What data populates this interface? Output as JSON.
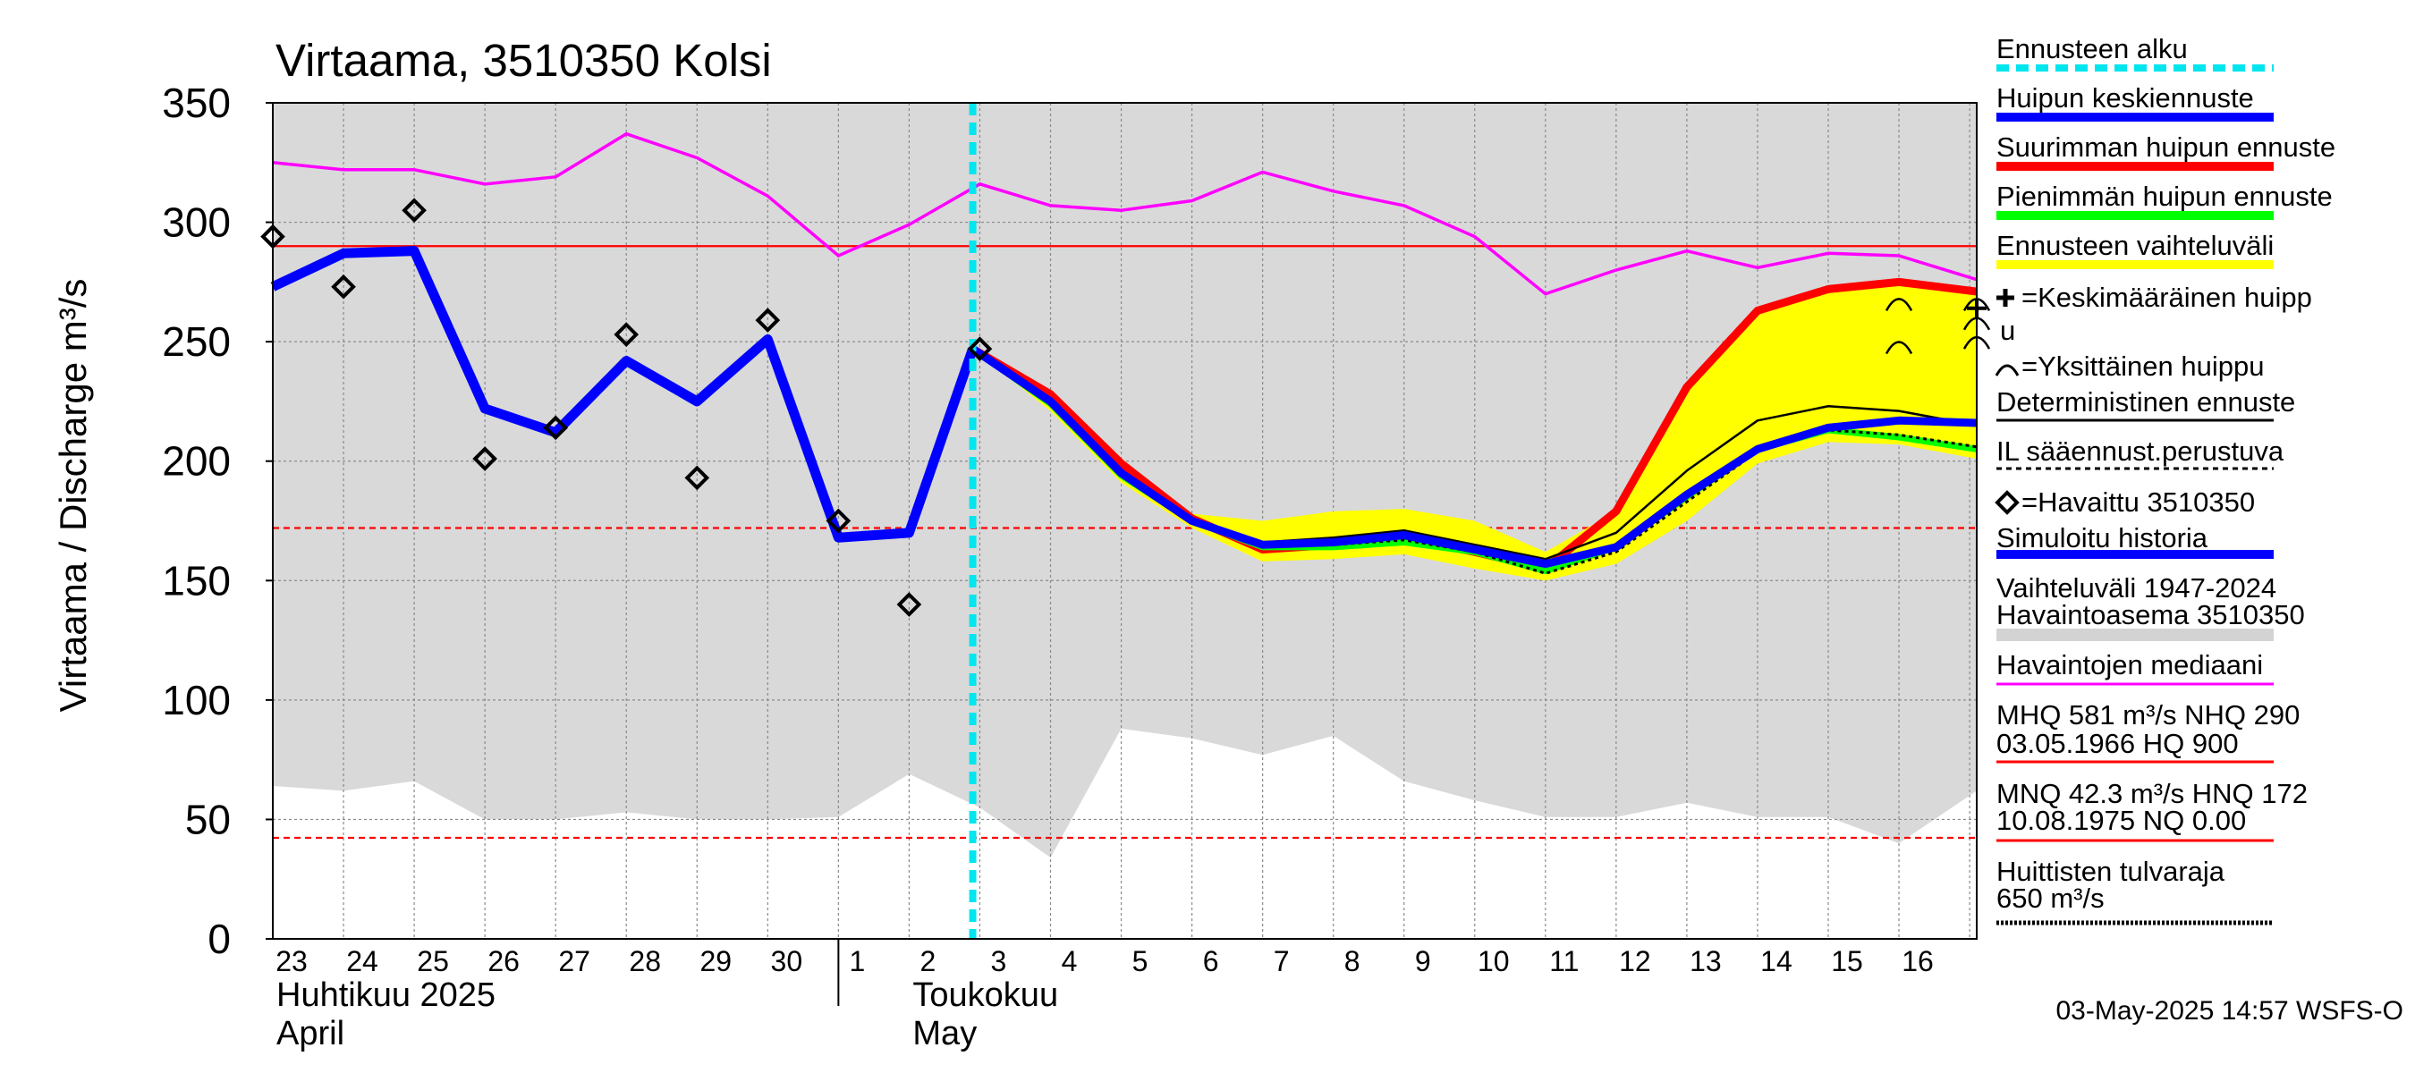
{
  "chart_data": {
    "type": "line",
    "title": "Virtaama, 3510350 Kolsi",
    "ylabel": "Virtaama / Discharge    m³/s",
    "ylim": [
      0,
      350
    ],
    "yticks": [
      0,
      50,
      100,
      150,
      200,
      250,
      300,
      350
    ],
    "x_days": [
      23,
      24,
      25,
      26,
      27,
      28,
      29,
      30,
      1,
      2,
      3,
      4,
      5,
      6,
      7,
      8,
      9,
      10,
      11,
      12,
      13,
      14,
      15,
      16
    ],
    "x_start_index": 0,
    "x_end_index": 24.1,
    "month_labels": [
      {
        "at": 0,
        "fi": "Huhtikuu  2025",
        "en": "April"
      },
      {
        "at": 9,
        "fi": "Toukokuu",
        "en": "May"
      }
    ],
    "month_divider_at": 8,
    "forecast_start_at": 9.9,
    "reference_lines": [
      {
        "name": "NHQ",
        "value": 290,
        "color": "#ff0000",
        "style": "solid"
      },
      {
        "name": "HNQ",
        "value": 172,
        "color": "#ff0000",
        "style": "dashed"
      },
      {
        "name": "MNQ",
        "value": 42.3,
        "color": "#ff0000",
        "style": "dashed"
      }
    ],
    "range_1947_2024": {
      "x": [
        0,
        1,
        2,
        3,
        4,
        5,
        6,
        7,
        8,
        9,
        10,
        11,
        12,
        13,
        14,
        15,
        16,
        17,
        18,
        19,
        20,
        21,
        22,
        23,
        24.1
      ],
      "lower": [
        64,
        62,
        66,
        50,
        50,
        53,
        50,
        50,
        51,
        69,
        55,
        34,
        88,
        84,
        77,
        85,
        66,
        58,
        51,
        51,
        57,
        51,
        51,
        40,
        62
      ]
    },
    "series": [
      {
        "name": "Havaintojen mediaani",
        "color": "#ff00ff",
        "x": [
          0,
          1,
          2,
          3,
          4,
          5,
          6,
          7,
          8,
          9,
          10,
          11,
          12,
          13,
          14,
          15,
          16,
          17,
          18,
          19,
          20,
          21,
          22,
          23,
          24.1
        ],
        "values": [
          325,
          322,
          322,
          316,
          319,
          337,
          327,
          311,
          286,
          299,
          316,
          307,
          305,
          309,
          321,
          313,
          307,
          294,
          270,
          280,
          288,
          281,
          287,
          286,
          276
        ]
      },
      {
        "name": "Simuloitu historia",
        "color": "#0000ff",
        "x": [
          0,
          1,
          2,
          3,
          4,
          5,
          6,
          7,
          8,
          9,
          9.9
        ],
        "values": [
          273,
          287,
          288,
          222,
          212,
          242,
          225,
          251,
          168,
          170,
          247
        ]
      },
      {
        "name": "Ennusteen vaihteluväli (upper)",
        "color": "#ffff00",
        "x": [
          9.9,
          11,
          12,
          13,
          14,
          15,
          16,
          17,
          18,
          19,
          20,
          21,
          22,
          23,
          24.1
        ],
        "values": [
          247,
          229,
          201,
          178,
          175,
          179,
          180,
          175,
          162,
          179,
          231,
          263,
          273,
          276,
          271
        ]
      },
      {
        "name": "Ennusteen vaihteluväli (lower)",
        "color": "#ffff00",
        "x": [
          9.9,
          11,
          12,
          13,
          14,
          15,
          16,
          17,
          18,
          19,
          20,
          21,
          22,
          23,
          24.1
        ],
        "values": [
          247,
          221,
          191,
          172,
          158,
          159,
          161,
          155,
          150,
          157,
          175,
          199,
          208,
          207,
          201
        ]
      },
      {
        "name": "Suurimman huipun ennuste",
        "color": "#ff0000",
        "x": [
          9.9,
          11,
          12,
          13,
          14,
          15,
          16,
          17,
          18,
          19,
          20,
          21,
          22,
          23,
          24.1
        ],
        "values": [
          247,
          228,
          199,
          176,
          163,
          165,
          168,
          162,
          155,
          179,
          231,
          263,
          272,
          275,
          271
        ]
      },
      {
        "name": "Pienimmän huipun ennuste",
        "color": "#00ff00",
        "x": [
          9.9,
          11,
          12,
          13,
          14,
          15,
          16,
          17,
          18,
          19,
          20,
          21,
          22,
          23,
          24.1
        ],
        "values": [
          247,
          224,
          194,
          175,
          164,
          164,
          166,
          162,
          154,
          164,
          185,
          205,
          213,
          210,
          205
        ]
      },
      {
        "name": "Deterministinen ennuste",
        "color": "#000000",
        "x": [
          9.9,
          11,
          12,
          13,
          14,
          15,
          16,
          17,
          18,
          19,
          20,
          21,
          22,
          23,
          24.1
        ],
        "values": [
          247,
          226,
          196,
          175,
          166,
          168,
          171,
          165,
          159,
          170,
          196,
          217,
          223,
          221,
          215
        ]
      },
      {
        "name": "IL sääennust.perustuva",
        "color": "#000000",
        "x": [
          9.9,
          11,
          12,
          13,
          14,
          15,
          16,
          17,
          18,
          19,
          20,
          21,
          22,
          23,
          24.1
        ],
        "values": [
          247,
          225,
          195,
          175,
          164,
          165,
          167,
          162,
          153,
          162,
          183,
          204,
          213,
          211,
          206
        ]
      },
      {
        "name": "Huipun keskiennuste",
        "color": "#0000ff",
        "x": [
          9.9,
          11,
          12,
          13,
          14,
          15,
          16,
          17,
          18,
          19,
          20,
          21,
          22,
          23,
          24.1
        ],
        "values": [
          247,
          225,
          195,
          175,
          165,
          166,
          169,
          163,
          157,
          164,
          186,
          205,
          214,
          217,
          216
        ]
      }
    ],
    "observed": {
      "name": "Havaittu 3510350",
      "x": [
        0,
        1,
        2,
        3,
        4,
        5,
        6,
        7,
        8,
        9,
        10
      ],
      "values": [
        294,
        273,
        305,
        201,
        214,
        253,
        193,
        259,
        175,
        140,
        247
      ]
    },
    "individual_peaks": [
      {
        "x": 23,
        "values": [
          266,
          248
        ]
      },
      {
        "x": 24.1,
        "values": [
          266,
          258,
          250
        ]
      }
    ],
    "mean_peak": {
      "x": 24.1,
      "value": 264
    },
    "legend": [
      {
        "label": "Ennusteen alku",
        "color": "#00e5ee",
        "kind": "dashed-thick"
      },
      {
        "label": "Huipun keskiennuste",
        "color": "#0000ff",
        "kind": "thick"
      },
      {
        "label": "Suurimman huipun ennuste",
        "color": "#ff0000",
        "kind": "thick"
      },
      {
        "label": "Pienimmän huipun ennuste",
        "color": "#00ff00",
        "kind": "thick"
      },
      {
        "label": "Ennusteen vaihteluväli",
        "color": "#ffff00",
        "kind": "thick"
      },
      {
        "label": "=Keskimääräinen huipp",
        "label2": "u",
        "color": "#000000",
        "kind": "plus"
      },
      {
        "label": "=Yksittäinen huippu",
        "color": "#000000",
        "kind": "arc"
      },
      {
        "label": "Deterministinen ennuste",
        "color": "#000000",
        "kind": "thin"
      },
      {
        "label": "IL sääennust.perustuva",
        "color": "#000000",
        "kind": "dotted"
      },
      {
        "label": "=Havaittu 3510350",
        "color": "#000000",
        "kind": "diamond"
      },
      {
        "label": "Simuloitu historia",
        "color": "#0000ff",
        "kind": "thick"
      },
      {
        "label": "Vaihteluväli 1947-2024",
        "label2": " Havaintoasema 3510350",
        "color": "#d3d3d3",
        "kind": "thick"
      },
      {
        "label": "Havaintojen mediaani",
        "color": "#ff00ff",
        "kind": "thin"
      },
      {
        "label": "MHQ  581 m³/s NHQ  290",
        "label2": "03.05.1966 HQ  900",
        "color": "#ff0000",
        "kind": "thin"
      },
      {
        "label": "MNQ 42.3 m³/s HNQ  172",
        "label2": "10.08.1975 NQ 0.00",
        "color": "#ff0000",
        "kind": "thin"
      },
      {
        "label": "Huittisten tulvaraja",
        "label2": "650 m³/s",
        "color": "#000000",
        "kind": "dotted"
      }
    ],
    "timestamp": "03-May-2025 14:57 WSFS-O"
  }
}
